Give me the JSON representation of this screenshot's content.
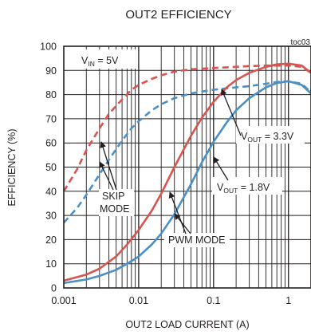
{
  "chart_data": {
    "type": "line",
    "title": "OUT2 EFFICIENCY",
    "tag": "toc03",
    "xlabel": "OUT2 LOAD CURRENT (A)",
    "ylabel": "EFFICIENCY (%)",
    "xscale": "log",
    "xlim": [
      0.001,
      2
    ],
    "ylim": [
      0,
      100
    ],
    "grid": true,
    "x_ticks": [
      {
        "value": 0.001,
        "label": "0.001"
      },
      {
        "value": 0.01,
        "label": "0.01"
      },
      {
        "value": 0.1,
        "label": "0.1"
      },
      {
        "value": 1,
        "label": "1"
      }
    ],
    "y_ticks": [
      {
        "value": 0,
        "label": "0"
      },
      {
        "value": 10,
        "label": "10"
      },
      {
        "value": 20,
        "label": "20"
      },
      {
        "value": 30,
        "label": "30"
      },
      {
        "value": 40,
        "label": "40"
      },
      {
        "value": 50,
        "label": "50"
      },
      {
        "value": 60,
        "label": "60"
      },
      {
        "value": 70,
        "label": "70"
      },
      {
        "value": 80,
        "label": "80"
      },
      {
        "value": 90,
        "label": "90"
      },
      {
        "value": 100,
        "label": "100"
      }
    ],
    "series": [
      {
        "id": "skip-3v3",
        "color": "#d9534f",
        "dash": true,
        "x": [
          0.001,
          0.0015,
          0.002,
          0.003,
          0.004,
          0.006,
          0.008,
          0.01,
          0.015,
          0.02,
          0.03,
          0.05,
          0.1,
          0.2,
          0.3,
          0.5,
          0.7,
          1,
          1.5,
          2
        ],
        "y": [
          40,
          49,
          57,
          66,
          72,
          78,
          82,
          84,
          86.5,
          88,
          89.5,
          90.5,
          91,
          91.5,
          91.8,
          92,
          92,
          92,
          91.5,
          89
        ]
      },
      {
        "id": "skip-1v8",
        "color": "#4a90c8",
        "dash": true,
        "x": [
          0.001,
          0.0015,
          0.002,
          0.003,
          0.004,
          0.006,
          0.008,
          0.01,
          0.015,
          0.02,
          0.03,
          0.05,
          0.1,
          0.2,
          0.3,
          0.5,
          0.7,
          1,
          1.5,
          2
        ],
        "y": [
          27,
          33,
          38.5,
          47,
          53,
          61,
          66,
          69,
          73.5,
          76,
          78.5,
          80.5,
          82,
          83,
          83.5,
          84.5,
          85.2,
          85.5,
          84.5,
          81
        ]
      },
      {
        "id": "pwm-3v3",
        "color": "#d9534f",
        "dash": false,
        "x": [
          0.001,
          0.002,
          0.003,
          0.005,
          0.007,
          0.01,
          0.015,
          0.02,
          0.03,
          0.05,
          0.07,
          0.1,
          0.15,
          0.2,
          0.3,
          0.5,
          0.7,
          1,
          1.5,
          2
        ],
        "y": [
          3,
          5.5,
          8,
          13,
          18,
          24,
          32,
          39,
          50,
          63,
          70.5,
          77,
          83,
          86,
          89,
          91.5,
          92.5,
          92.8,
          92,
          89
        ]
      },
      {
        "id": "pwm-1v8",
        "color": "#4a90c8",
        "dash": false,
        "x": [
          0.001,
          0.002,
          0.003,
          0.005,
          0.007,
          0.01,
          0.015,
          0.02,
          0.03,
          0.05,
          0.07,
          0.1,
          0.15,
          0.2,
          0.3,
          0.5,
          0.7,
          1,
          1.5,
          2
        ],
        "y": [
          2,
          3.5,
          5,
          7.5,
          10,
          13,
          18,
          22.5,
          30.5,
          43,
          52,
          60.5,
          68.5,
          73.5,
          78.5,
          83,
          84.8,
          85.5,
          84,
          80.5
        ]
      }
    ],
    "annotations": {
      "vin": {
        "main": "V",
        "sub": "IN",
        "rest": " = 5V"
      },
      "vout33": {
        "main": "V",
        "sub": "OUT",
        "rest": " = 3.3V"
      },
      "vout18": {
        "main": "V",
        "sub": "OUT",
        "rest": " = 1.8V"
      },
      "skip_line1": "SKIP",
      "skip_line2": "MODE",
      "pwm": "PWM MODE"
    }
  }
}
